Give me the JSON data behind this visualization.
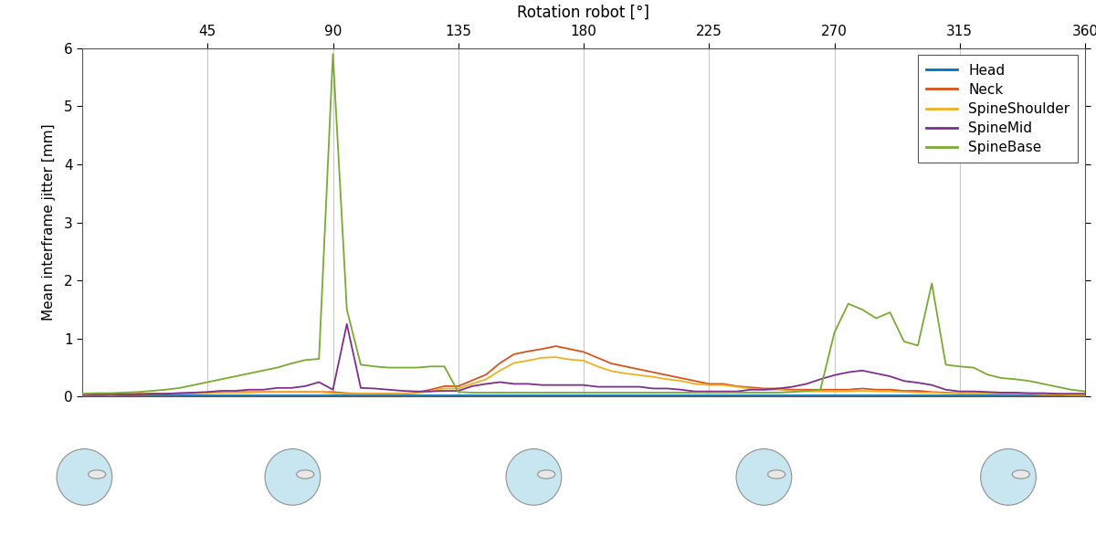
{
  "title_top": "Rotation robot [°]",
  "ylabel": "Mean interframe jitter [mm]",
  "xlim": [
    0,
    360
  ],
  "ylim": [
    0,
    6
  ],
  "xticks": [
    45,
    90,
    135,
    180,
    225,
    270,
    315,
    360
  ],
  "yticks": [
    0,
    1,
    2,
    3,
    4,
    5,
    6
  ],
  "vlines": [
    45,
    90,
    135,
    180,
    225,
    270,
    315
  ],
  "legend_labels": [
    "Head",
    "Neck",
    "SpineShoulder",
    "SpineMid",
    "SpineBase"
  ],
  "legend_colors": [
    "#0072BD",
    "#D95319",
    "#EDB120",
    "#7E2F8E",
    "#77AC30"
  ],
  "bg_color": "#FFFFFF",
  "axis_color": "#808080",
  "Head_x": [
    0,
    5,
    10,
    15,
    20,
    25,
    30,
    35,
    40,
    45,
    50,
    55,
    60,
    65,
    70,
    75,
    80,
    85,
    90,
    95,
    100,
    105,
    110,
    115,
    120,
    125,
    130,
    135,
    140,
    145,
    150,
    155,
    160,
    165,
    170,
    175,
    180,
    185,
    190,
    195,
    200,
    205,
    210,
    215,
    220,
    225,
    230,
    235,
    240,
    245,
    250,
    255,
    260,
    265,
    270,
    275,
    280,
    285,
    290,
    295,
    300,
    305,
    310,
    315,
    320,
    325,
    330,
    335,
    340,
    345,
    350,
    355,
    360
  ],
  "Head_y": [
    0.02,
    0.02,
    0.02,
    0.02,
    0.02,
    0.02,
    0.02,
    0.02,
    0.02,
    0.02,
    0.02,
    0.02,
    0.02,
    0.02,
    0.02,
    0.02,
    0.02,
    0.02,
    0.02,
    0.02,
    0.02,
    0.02,
    0.02,
    0.02,
    0.02,
    0.02,
    0.02,
    0.02,
    0.02,
    0.02,
    0.02,
    0.02,
    0.02,
    0.02,
    0.02,
    0.02,
    0.02,
    0.02,
    0.02,
    0.02,
    0.02,
    0.02,
    0.02,
    0.02,
    0.02,
    0.02,
    0.02,
    0.02,
    0.02,
    0.02,
    0.02,
    0.02,
    0.02,
    0.02,
    0.02,
    0.02,
    0.02,
    0.02,
    0.02,
    0.02,
    0.02,
    0.02,
    0.02,
    0.02,
    0.02,
    0.02,
    0.02,
    0.02,
    0.02,
    0.02,
    0.02,
    0.02,
    0.02
  ],
  "Neck_x": [
    0,
    5,
    10,
    15,
    20,
    25,
    30,
    35,
    40,
    45,
    50,
    55,
    60,
    65,
    70,
    75,
    80,
    85,
    90,
    95,
    100,
    105,
    110,
    115,
    120,
    125,
    130,
    135,
    140,
    145,
    150,
    155,
    160,
    165,
    170,
    175,
    180,
    185,
    190,
    195,
    200,
    205,
    210,
    215,
    220,
    225,
    230,
    235,
    240,
    245,
    250,
    255,
    260,
    265,
    270,
    275,
    280,
    285,
    290,
    295,
    300,
    305,
    310,
    315,
    320,
    325,
    330,
    335,
    340,
    345,
    350,
    355,
    360
  ],
  "Neck_y": [
    0.04,
    0.04,
    0.04,
    0.04,
    0.05,
    0.05,
    0.05,
    0.06,
    0.06,
    0.07,
    0.07,
    0.08,
    0.08,
    0.08,
    0.08,
    0.08,
    0.08,
    0.08,
    0.08,
    0.06,
    0.05,
    0.05,
    0.05,
    0.05,
    0.07,
    0.12,
    0.18,
    0.18,
    0.28,
    0.38,
    0.58,
    0.73,
    0.78,
    0.82,
    0.87,
    0.82,
    0.77,
    0.67,
    0.57,
    0.52,
    0.47,
    0.42,
    0.37,
    0.32,
    0.27,
    0.22,
    0.22,
    0.18,
    0.16,
    0.14,
    0.14,
    0.12,
    0.12,
    0.12,
    0.12,
    0.12,
    0.14,
    0.12,
    0.12,
    0.1,
    0.1,
    0.08,
    0.07,
    0.06,
    0.06,
    0.06,
    0.06,
    0.05,
    0.05,
    0.05,
    0.04,
    0.04,
    0.04
  ],
  "SpineShoulder_x": [
    0,
    5,
    10,
    15,
    20,
    25,
    30,
    35,
    40,
    45,
    50,
    55,
    60,
    65,
    70,
    75,
    80,
    85,
    90,
    95,
    100,
    105,
    110,
    115,
    120,
    125,
    130,
    135,
    140,
    145,
    150,
    155,
    160,
    165,
    170,
    175,
    180,
    185,
    190,
    195,
    200,
    205,
    210,
    215,
    220,
    225,
    230,
    235,
    240,
    245,
    250,
    255,
    260,
    265,
    270,
    275,
    280,
    285,
    290,
    295,
    300,
    305,
    310,
    315,
    320,
    325,
    330,
    335,
    340,
    345,
    350,
    355,
    360
  ],
  "SpineShoulder_y": [
    0.03,
    0.04,
    0.03,
    0.04,
    0.04,
    0.05,
    0.05,
    0.05,
    0.06,
    0.06,
    0.07,
    0.07,
    0.07,
    0.08,
    0.08,
    0.08,
    0.08,
    0.08,
    0.06,
    0.05,
    0.05,
    0.05,
    0.05,
    0.05,
    0.06,
    0.09,
    0.14,
    0.14,
    0.22,
    0.3,
    0.45,
    0.58,
    0.62,
    0.67,
    0.68,
    0.64,
    0.62,
    0.52,
    0.44,
    0.4,
    0.37,
    0.34,
    0.3,
    0.27,
    0.22,
    0.2,
    0.2,
    0.17,
    0.14,
    0.12,
    0.12,
    0.1,
    0.09,
    0.09,
    0.09,
    0.09,
    0.1,
    0.09,
    0.09,
    0.08,
    0.07,
    0.07,
    0.06,
    0.06,
    0.06,
    0.06,
    0.05,
    0.05,
    0.05,
    0.04,
    0.04,
    0.03,
    0.03
  ],
  "SpineMid_x": [
    0,
    5,
    10,
    15,
    20,
    25,
    30,
    35,
    40,
    45,
    50,
    55,
    60,
    65,
    70,
    75,
    80,
    85,
    90,
    95,
    100,
    105,
    110,
    115,
    120,
    125,
    130,
    135,
    140,
    145,
    150,
    155,
    160,
    165,
    170,
    175,
    180,
    185,
    190,
    195,
    200,
    205,
    210,
    215,
    220,
    225,
    230,
    235,
    240,
    245,
    250,
    255,
    260,
    265,
    270,
    275,
    280,
    285,
    290,
    295,
    300,
    305,
    310,
    315,
    320,
    325,
    330,
    335,
    340,
    345,
    350,
    355,
    360
  ],
  "SpineMid_y": [
    0.04,
    0.04,
    0.04,
    0.04,
    0.04,
    0.05,
    0.05,
    0.06,
    0.07,
    0.08,
    0.1,
    0.1,
    0.12,
    0.12,
    0.15,
    0.15,
    0.18,
    0.25,
    0.12,
    1.25,
    0.15,
    0.14,
    0.12,
    0.1,
    0.09,
    0.09,
    0.1,
    0.1,
    0.18,
    0.22,
    0.25,
    0.22,
    0.22,
    0.2,
    0.2,
    0.2,
    0.2,
    0.17,
    0.17,
    0.17,
    0.17,
    0.14,
    0.14,
    0.12,
    0.09,
    0.09,
    0.09,
    0.09,
    0.12,
    0.12,
    0.14,
    0.17,
    0.22,
    0.3,
    0.37,
    0.42,
    0.45,
    0.4,
    0.35,
    0.27,
    0.24,
    0.2,
    0.12,
    0.09,
    0.09,
    0.08,
    0.07,
    0.07,
    0.06,
    0.06,
    0.05,
    0.05,
    0.05
  ],
  "SpineBase_x": [
    0,
    5,
    10,
    15,
    20,
    25,
    30,
    35,
    40,
    45,
    50,
    55,
    60,
    65,
    70,
    75,
    80,
    85,
    90,
    95,
    100,
    105,
    110,
    115,
    120,
    125,
    130,
    135,
    140,
    145,
    150,
    155,
    160,
    165,
    170,
    175,
    180,
    185,
    190,
    195,
    200,
    205,
    210,
    215,
    220,
    225,
    230,
    235,
    240,
    245,
    250,
    255,
    260,
    265,
    270,
    275,
    280,
    285,
    290,
    295,
    300,
    305,
    310,
    315,
    320,
    325,
    330,
    335,
    340,
    345,
    350,
    355,
    360
  ],
  "SpineBase_y": [
    0.05,
    0.06,
    0.06,
    0.07,
    0.08,
    0.1,
    0.12,
    0.15,
    0.2,
    0.25,
    0.3,
    0.35,
    0.4,
    0.45,
    0.5,
    0.57,
    0.63,
    0.65,
    5.9,
    1.5,
    0.55,
    0.52,
    0.5,
    0.5,
    0.5,
    0.52,
    0.52,
    0.08,
    0.07,
    0.07,
    0.07,
    0.07,
    0.07,
    0.07,
    0.07,
    0.07,
    0.07,
    0.07,
    0.07,
    0.07,
    0.07,
    0.07,
    0.07,
    0.07,
    0.07,
    0.07,
    0.07,
    0.07,
    0.07,
    0.07,
    0.07,
    0.08,
    0.1,
    0.12,
    1.1,
    1.6,
    1.5,
    1.35,
    1.45,
    0.95,
    0.88,
    1.95,
    0.55,
    0.52,
    0.5,
    0.38,
    0.32,
    0.3,
    0.27,
    0.22,
    0.17,
    0.12,
    0.09
  ]
}
